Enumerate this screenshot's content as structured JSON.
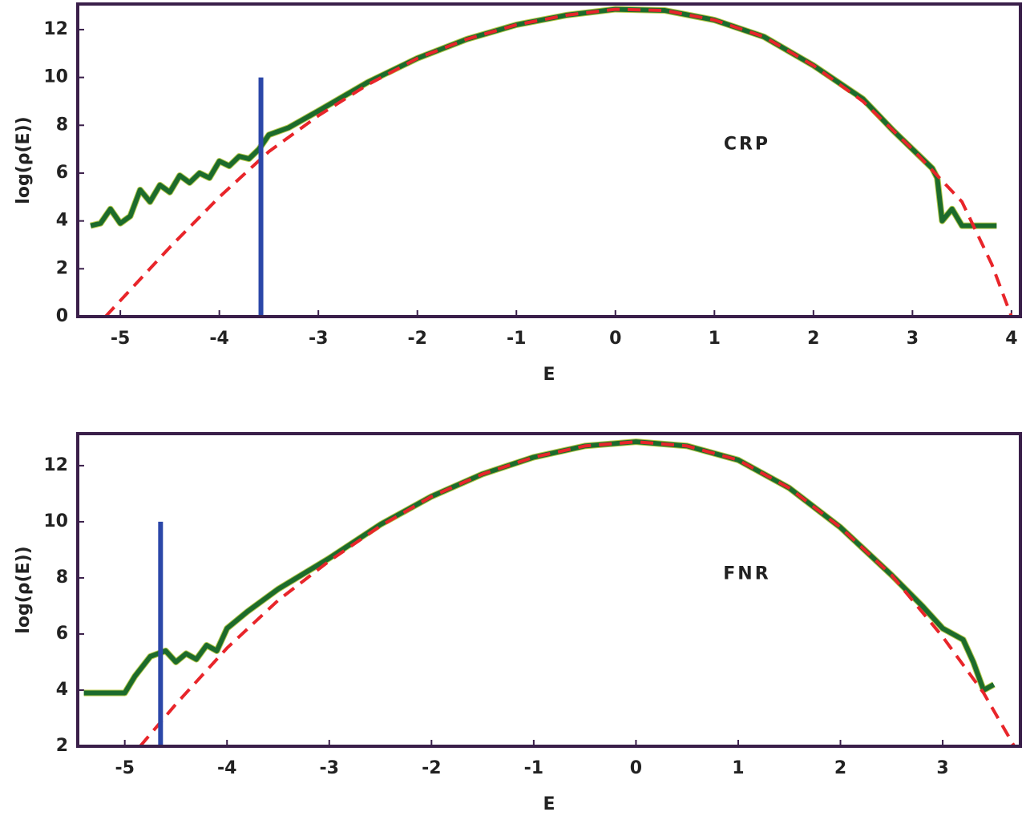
{
  "chart_data": [
    {
      "type": "line",
      "xlabel": "E",
      "ylabel": "log(ρ(E))",
      "annotation": "CRP",
      "xlim": [
        -5.43,
        4.09
      ],
      "ylim": [
        0,
        13.07
      ],
      "xticks": [
        -5,
        -4,
        -3,
        -2,
        -1,
        0,
        1,
        2,
        3,
        4
      ],
      "yticks": [
        0,
        2,
        4,
        6,
        8,
        10,
        12
      ],
      "series": [
        {
          "color": "#1c6b2c",
          "style": "solid",
          "x": [
            -5.3,
            -5.2,
            -5.1,
            -5.0,
            -4.9,
            -4.8,
            -4.7,
            -4.6,
            -4.5,
            -4.4,
            -4.3,
            -4.2,
            -4.1,
            -4.0,
            -3.9,
            -3.8,
            -3.7,
            -3.6,
            -3.5,
            -3.3,
            -3.0,
            -2.5,
            -2.0,
            -1.5,
            -1.0,
            -0.5,
            0,
            0.5,
            1.0,
            1.5,
            2.0,
            2.5,
            2.8,
            3.0,
            3.2,
            3.25,
            3.3,
            3.4,
            3.5,
            3.85
          ],
          "values": [
            3.8,
            3.9,
            4.5,
            3.9,
            4.2,
            5.3,
            4.8,
            5.5,
            5.2,
            5.9,
            5.6,
            6.0,
            5.8,
            6.5,
            6.3,
            6.7,
            6.6,
            7.0,
            7.6,
            7.9,
            8.6,
            9.8,
            10.8,
            11.6,
            12.2,
            12.6,
            12.85,
            12.8,
            12.4,
            11.7,
            10.5,
            9.1,
            7.8,
            7.0,
            6.2,
            5.8,
            4.0,
            4.5,
            3.8,
            3.8
          ]
        },
        {
          "color": "#e8252a",
          "style": "dashed",
          "x": [
            -5.15,
            -4.5,
            -4.0,
            -3.5,
            -3.0,
            -2.5,
            -2.0,
            -1.5,
            -1.0,
            -0.5,
            0,
            0.5,
            1.0,
            1.5,
            2.0,
            2.5,
            3.0,
            3.5,
            3.8,
            4.0
          ],
          "values": [
            0,
            2.9,
            5.0,
            6.9,
            8.4,
            9.7,
            10.8,
            11.6,
            12.2,
            12.6,
            12.85,
            12.8,
            12.4,
            11.7,
            10.5,
            9.0,
            7.0,
            4.8,
            2.2,
            0
          ]
        },
        {
          "color": "#2b47a8",
          "style": "solid",
          "x": [
            -3.58,
            -3.58
          ],
          "values": [
            0,
            10
          ]
        }
      ]
    },
    {
      "type": "line",
      "xlabel": "E",
      "ylabel": "log(ρ(E))",
      "annotation": "FNR",
      "xlim": [
        -5.46,
        3.76
      ],
      "ylim": [
        2,
        13.14
      ],
      "xticks": [
        -5,
        -4,
        -3,
        -2,
        -1,
        0,
        1,
        2,
        3
      ],
      "yticks": [
        2,
        4,
        6,
        8,
        10,
        12
      ],
      "series": [
        {
          "color": "#1c6b2c",
          "style": "solid",
          "x": [
            -5.4,
            -5.0,
            -4.9,
            -4.75,
            -4.6,
            -4.5,
            -4.4,
            -4.3,
            -4.2,
            -4.1,
            -4.0,
            -3.8,
            -3.5,
            -3.0,
            -2.5,
            -2.0,
            -1.5,
            -1.0,
            -0.5,
            0,
            0.5,
            1.0,
            1.5,
            2.0,
            2.5,
            2.8,
            3.0,
            3.2,
            3.3,
            3.4,
            3.5
          ],
          "values": [
            3.9,
            3.9,
            4.5,
            5.2,
            5.4,
            5.0,
            5.3,
            5.1,
            5.6,
            5.4,
            6.2,
            6.8,
            7.6,
            8.7,
            9.9,
            10.9,
            11.7,
            12.3,
            12.7,
            12.85,
            12.7,
            12.2,
            11.2,
            9.8,
            8.1,
            7.0,
            6.2,
            5.8,
            5.0,
            4.0,
            4.2
          ]
        },
        {
          "color": "#e8252a",
          "style": "dashed",
          "x": [
            -4.85,
            -4.5,
            -4.0,
            -3.5,
            -3.0,
            -2.5,
            -2.0,
            -1.5,
            -1.0,
            -0.5,
            0,
            0.5,
            1.0,
            1.5,
            2.0,
            2.5,
            3.0,
            3.4,
            3.7
          ],
          "values": [
            2,
            3.5,
            5.5,
            7.2,
            8.6,
            9.85,
            10.9,
            11.7,
            12.3,
            12.7,
            12.85,
            12.7,
            12.2,
            11.2,
            9.8,
            8.1,
            5.9,
            3.9,
            2
          ]
        },
        {
          "color": "#2b47a8",
          "style": "solid",
          "x": [
            -4.65,
            -4.65
          ],
          "values": [
            2,
            10
          ]
        }
      ]
    }
  ]
}
